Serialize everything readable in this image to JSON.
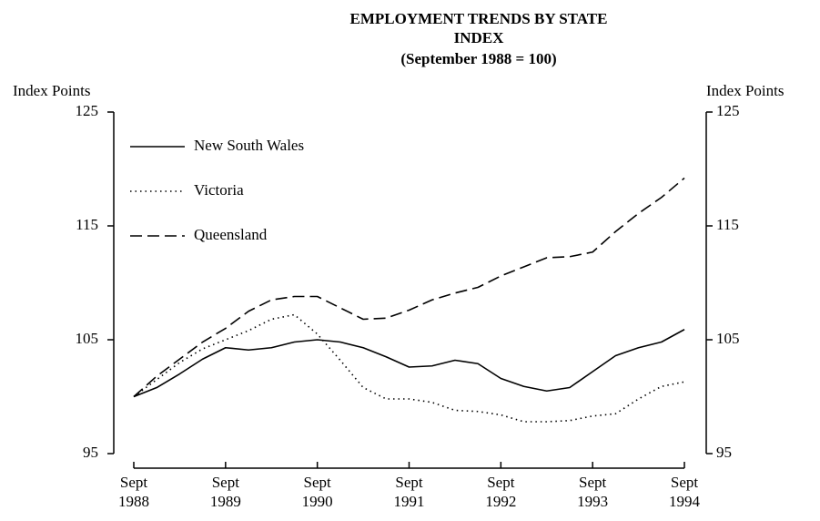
{
  "chart_data": {
    "type": "line",
    "title": "EMPLOYMENT TRENDS BY STATE",
    "subtitle": "INDEX",
    "caption": "(September 1988 = 100)",
    "ylabel": "Index Points",
    "y2label": "Index Points",
    "categories": [
      "Sept 1988",
      null,
      null,
      null,
      "Sept 1989",
      null,
      null,
      null,
      "Sept 1990",
      null,
      null,
      null,
      "Sept 1991",
      null,
      null,
      null,
      "Sept 1992",
      null,
      null,
      null,
      "Sept 1993",
      null,
      null,
      null,
      "Sept 1994"
    ],
    "ylim": [
      95,
      125
    ],
    "yticks": [
      95,
      105,
      115,
      125
    ],
    "y2lim": [
      95,
      125
    ],
    "y2ticks": [
      95,
      105,
      115,
      125
    ],
    "series": [
      {
        "name": "New South Wales",
        "color": "#000000",
        "dash": "solid",
        "values": [
          100,
          100.8,
          102,
          103.3,
          104.3,
          104.1,
          104.3,
          104.8,
          105,
          104.8,
          104.3,
          103.5,
          102.6,
          102.7,
          103.2,
          102.9,
          101.6,
          100.9,
          100.5,
          100.8,
          102.2,
          103.6,
          104.3,
          104.8,
          105.9
        ]
      },
      {
        "name": "Victoria",
        "color": "#000000",
        "dash": "dotted",
        "values": [
          100,
          101.5,
          103,
          104.2,
          105,
          105.8,
          106.8,
          107.2,
          105.5,
          103.2,
          100.8,
          99.8,
          99.8,
          99.5,
          98.8,
          98.7,
          98.4,
          97.8,
          97.8,
          97.9,
          98.3,
          98.5,
          99.8,
          100.9,
          101.3
        ]
      },
      {
        "name": "Queensland",
        "color": "#000000",
        "dash": "dashed",
        "values": [
          100,
          101.8,
          103.3,
          104.8,
          106,
          107.5,
          108.5,
          108.8,
          108.8,
          107.8,
          106.8,
          106.9,
          107.6,
          108.5,
          109.1,
          109.6,
          110.6,
          111.4,
          112.2,
          112.3,
          112.7,
          114.5,
          116.1,
          117.5,
          119.2
        ]
      }
    ]
  }
}
